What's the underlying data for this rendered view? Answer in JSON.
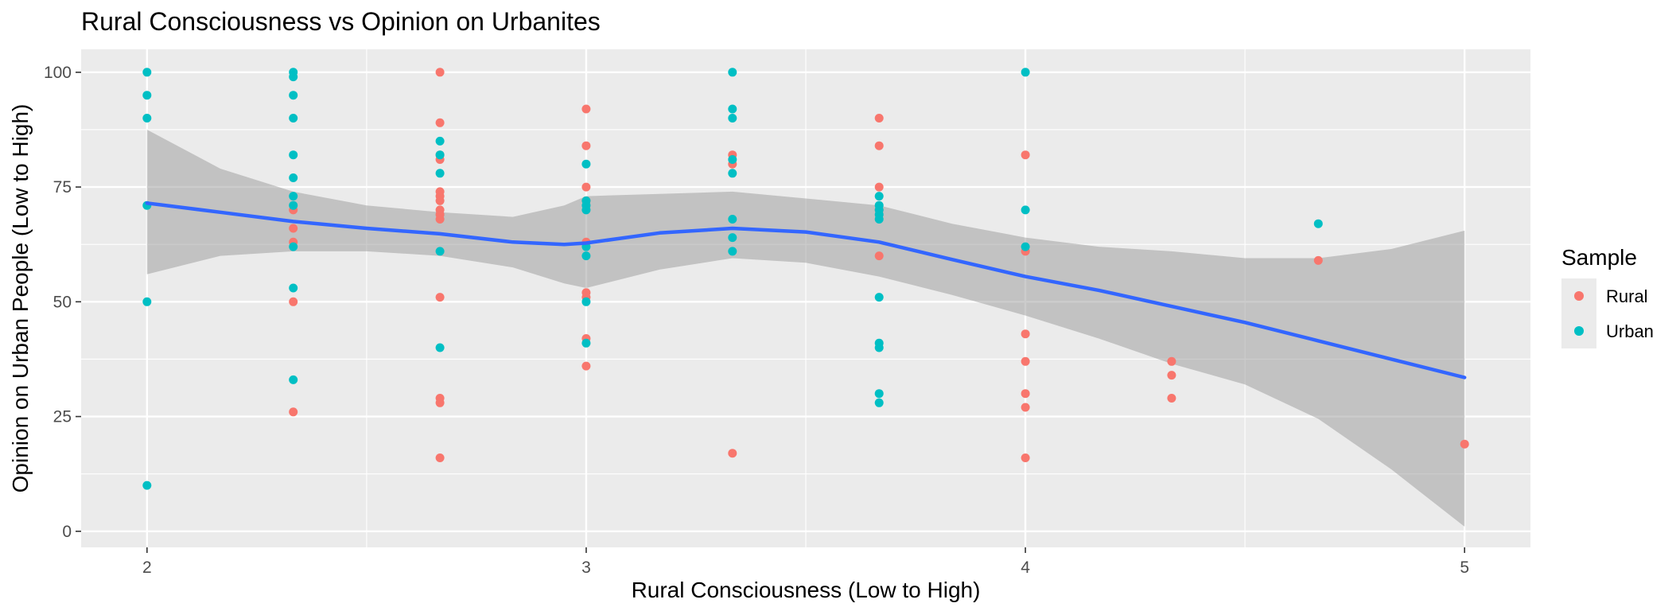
{
  "chart_data": {
    "type": "scatter",
    "title": "Rural Consciousness vs Opinion on Urbanites",
    "xlabel": "Rural Consciousness (Low to High)",
    "ylabel": "Opinion on Urban People (Low to High)",
    "xlim": [
      1.85,
      5.15
    ],
    "ylim": [
      -3.5,
      105
    ],
    "x_ticks": [
      2,
      3,
      4,
      5
    ],
    "y_ticks": [
      0,
      25,
      50,
      75,
      100
    ],
    "grid": true,
    "legend": {
      "title": "Sample",
      "position": "right",
      "entries": [
        {
          "name": "Rural",
          "color": "#F8766D"
        },
        {
          "name": "Urban",
          "color": "#00BFC4"
        }
      ]
    },
    "series": [
      {
        "name": "Rural",
        "color": "#F8766D",
        "points": [
          [
            2.333,
            70
          ],
          [
            2.333,
            66
          ],
          [
            2.333,
            63
          ],
          [
            2.333,
            50
          ],
          [
            2.333,
            26
          ],
          [
            2.667,
            100
          ],
          [
            2.667,
            89
          ],
          [
            2.667,
            82
          ],
          [
            2.667,
            81
          ],
          [
            2.667,
            74
          ],
          [
            2.667,
            73
          ],
          [
            2.667,
            72
          ],
          [
            2.667,
            70
          ],
          [
            2.667,
            69
          ],
          [
            2.667,
            68
          ],
          [
            2.667,
            51
          ],
          [
            2.667,
            29
          ],
          [
            2.667,
            28
          ],
          [
            2.667,
            16
          ],
          [
            3.0,
            92
          ],
          [
            3.0,
            84
          ],
          [
            3.0,
            75
          ],
          [
            3.0,
            72
          ],
          [
            3.0,
            63
          ],
          [
            3.0,
            52
          ],
          [
            3.0,
            51
          ],
          [
            3.0,
            42
          ],
          [
            3.0,
            36
          ],
          [
            3.333,
            82
          ],
          [
            3.333,
            80
          ],
          [
            3.333,
            17
          ],
          [
            3.667,
            90
          ],
          [
            3.667,
            84
          ],
          [
            3.667,
            75
          ],
          [
            3.667,
            70
          ],
          [
            3.667,
            60
          ],
          [
            4.0,
            82
          ],
          [
            4.0,
            61
          ],
          [
            4.0,
            43
          ],
          [
            4.0,
            37
          ],
          [
            4.0,
            30
          ],
          [
            4.0,
            27
          ],
          [
            4.0,
            16
          ],
          [
            4.333,
            37
          ],
          [
            4.333,
            34
          ],
          [
            4.333,
            29
          ],
          [
            4.667,
            59
          ],
          [
            5.0,
            19
          ]
        ]
      },
      {
        "name": "Urban",
        "color": "#00BFC4",
        "points": [
          [
            2.0,
            100
          ],
          [
            2.0,
            95
          ],
          [
            2.0,
            90
          ],
          [
            2.0,
            71
          ],
          [
            2.0,
            50
          ],
          [
            2.0,
            10
          ],
          [
            2.333,
            100
          ],
          [
            2.333,
            99
          ],
          [
            2.333,
            95
          ],
          [
            2.333,
            90
          ],
          [
            2.333,
            82
          ],
          [
            2.333,
            77
          ],
          [
            2.333,
            73
          ],
          [
            2.333,
            71
          ],
          [
            2.333,
            62
          ],
          [
            2.333,
            53
          ],
          [
            2.333,
            33
          ],
          [
            2.667,
            85
          ],
          [
            2.667,
            82
          ],
          [
            2.667,
            78
          ],
          [
            2.667,
            61
          ],
          [
            2.667,
            40
          ],
          [
            3.0,
            80
          ],
          [
            3.0,
            72
          ],
          [
            3.0,
            71
          ],
          [
            3.0,
            70
          ],
          [
            3.0,
            62
          ],
          [
            3.0,
            60
          ],
          [
            3.0,
            50
          ],
          [
            3.0,
            41
          ],
          [
            3.333,
            100
          ],
          [
            3.333,
            92
          ],
          [
            3.333,
            90
          ],
          [
            3.333,
            81
          ],
          [
            3.333,
            78
          ],
          [
            3.333,
            68
          ],
          [
            3.333,
            64
          ],
          [
            3.333,
            61
          ],
          [
            3.667,
            73
          ],
          [
            3.667,
            71
          ],
          [
            3.667,
            70
          ],
          [
            3.667,
            69
          ],
          [
            3.667,
            68
          ],
          [
            3.667,
            51
          ],
          [
            3.667,
            41
          ],
          [
            3.667,
            40
          ],
          [
            3.667,
            30
          ],
          [
            3.667,
            28
          ],
          [
            4.0,
            100
          ],
          [
            4.0,
            70
          ],
          [
            4.0,
            62
          ],
          [
            4.667,
            67
          ]
        ]
      }
    ],
    "smooth": {
      "color": "#3366FF",
      "band_color": "#999999",
      "points": [
        {
          "x": 2.0,
          "y": 71.5,
          "lo": 56,
          "hi": 87.5
        },
        {
          "x": 2.167,
          "y": 69.5,
          "lo": 60,
          "hi": 79
        },
        {
          "x": 2.333,
          "y": 67.5,
          "lo": 61,
          "hi": 74
        },
        {
          "x": 2.5,
          "y": 66,
          "lo": 61,
          "hi": 71
        },
        {
          "x": 2.667,
          "y": 64.8,
          "lo": 60,
          "hi": 69.5
        },
        {
          "x": 2.833,
          "y": 63,
          "lo": 57.5,
          "hi": 68.5
        },
        {
          "x": 2.95,
          "y": 62.5,
          "lo": 54,
          "hi": 71
        },
        {
          "x": 3.0,
          "y": 62.8,
          "lo": 53,
          "hi": 73
        },
        {
          "x": 3.167,
          "y": 65,
          "lo": 57,
          "hi": 73.5
        },
        {
          "x": 3.333,
          "y": 66,
          "lo": 59.5,
          "hi": 74
        },
        {
          "x": 3.5,
          "y": 65.2,
          "lo": 58.5,
          "hi": 72.5
        },
        {
          "x": 3.667,
          "y": 63,
          "lo": 55.5,
          "hi": 71
        },
        {
          "x": 3.833,
          "y": 59.2,
          "lo": 51.5,
          "hi": 67
        },
        {
          "x": 4.0,
          "y": 55.5,
          "lo": 47,
          "hi": 64
        },
        {
          "x": 4.167,
          "y": 52.5,
          "lo": 42,
          "hi": 62
        },
        {
          "x": 4.333,
          "y": 49,
          "lo": 36.5,
          "hi": 61
        },
        {
          "x": 4.5,
          "y": 45.5,
          "lo": 32,
          "hi": 59.5
        },
        {
          "x": 4.667,
          "y": 41.5,
          "lo": 24.5,
          "hi": 59.5
        },
        {
          "x": 4.833,
          "y": 37.5,
          "lo": 13.5,
          "hi": 61.5
        },
        {
          "x": 5.0,
          "y": 33.5,
          "lo": 1,
          "hi": 65.5
        }
      ]
    }
  }
}
